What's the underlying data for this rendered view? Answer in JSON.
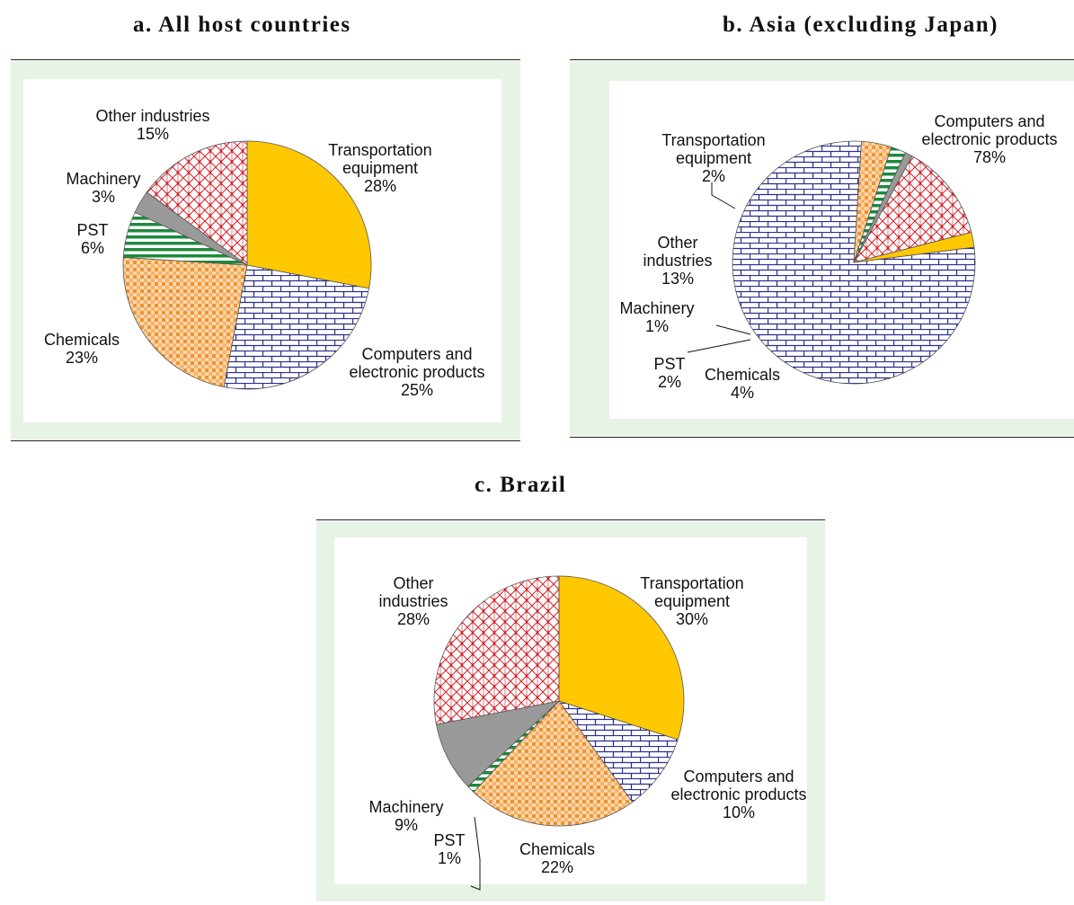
{
  "chart_data": [
    {
      "type": "pie",
      "title": "a. All host countries",
      "slices": [
        {
          "name": "Transportation equipment",
          "value": 28,
          "value_label": "28%",
          "pattern": "solid-yellow"
        },
        {
          "name": "Computers and electronic products",
          "value": 25,
          "value_label": "25%",
          "pattern": "blue-brick"
        },
        {
          "name": "Chemicals",
          "value": 23,
          "value_label": "23%",
          "pattern": "orange-check"
        },
        {
          "name": "PST",
          "value": 6,
          "value_label": "6%",
          "pattern": "green-stripe"
        },
        {
          "name": "Machinery",
          "value": 3,
          "value_label": "3%",
          "pattern": "solid-gray"
        },
        {
          "name": "Other industries",
          "value": 15,
          "value_label": "15%",
          "pattern": "red-diamond"
        }
      ]
    },
    {
      "type": "pie",
      "title": "b. Asia (excluding Japan)",
      "slices": [
        {
          "name": "Computers and electronic products",
          "value": 78,
          "value_label": "78%",
          "pattern": "blue-brick"
        },
        {
          "name": "Chemicals",
          "value": 4,
          "value_label": "4%",
          "pattern": "orange-check"
        },
        {
          "name": "PST",
          "value": 2,
          "value_label": "2%",
          "pattern": "green-stripe"
        },
        {
          "name": "Machinery",
          "value": 1,
          "value_label": "1%",
          "pattern": "solid-gray"
        },
        {
          "name": "Other industries",
          "value": 13,
          "value_label": "13%",
          "pattern": "red-diamond"
        },
        {
          "name": "Transportation equipment",
          "value": 2,
          "value_label": "2%",
          "pattern": "solid-yellow"
        }
      ]
    },
    {
      "type": "pie",
      "title": "c. Brazil",
      "slices": [
        {
          "name": "Transportation equipment",
          "value": 30,
          "value_label": "30%",
          "pattern": "solid-yellow"
        },
        {
          "name": "Computers and electronic products",
          "value": 10,
          "value_label": "10%",
          "pattern": "blue-brick"
        },
        {
          "name": "Chemicals",
          "value": 22,
          "value_label": "22%",
          "pattern": "orange-check"
        },
        {
          "name": "PST",
          "value": 1,
          "value_label": "1%",
          "pattern": "green-stripe"
        },
        {
          "name": "Machinery",
          "value": 9,
          "value_label": "9%",
          "pattern": "solid-gray"
        },
        {
          "name": "Other industries",
          "value": 28,
          "value_label": "28%",
          "pattern": "red-diamond"
        }
      ]
    }
  ],
  "colors": {
    "transportation": "#ffc800",
    "computers": "#2b2f8f",
    "chemicals": "#f0932b",
    "pst": "#1c8a3c",
    "machinery": "#999999",
    "other": "#d42027",
    "frame": "#e6f3e5"
  }
}
